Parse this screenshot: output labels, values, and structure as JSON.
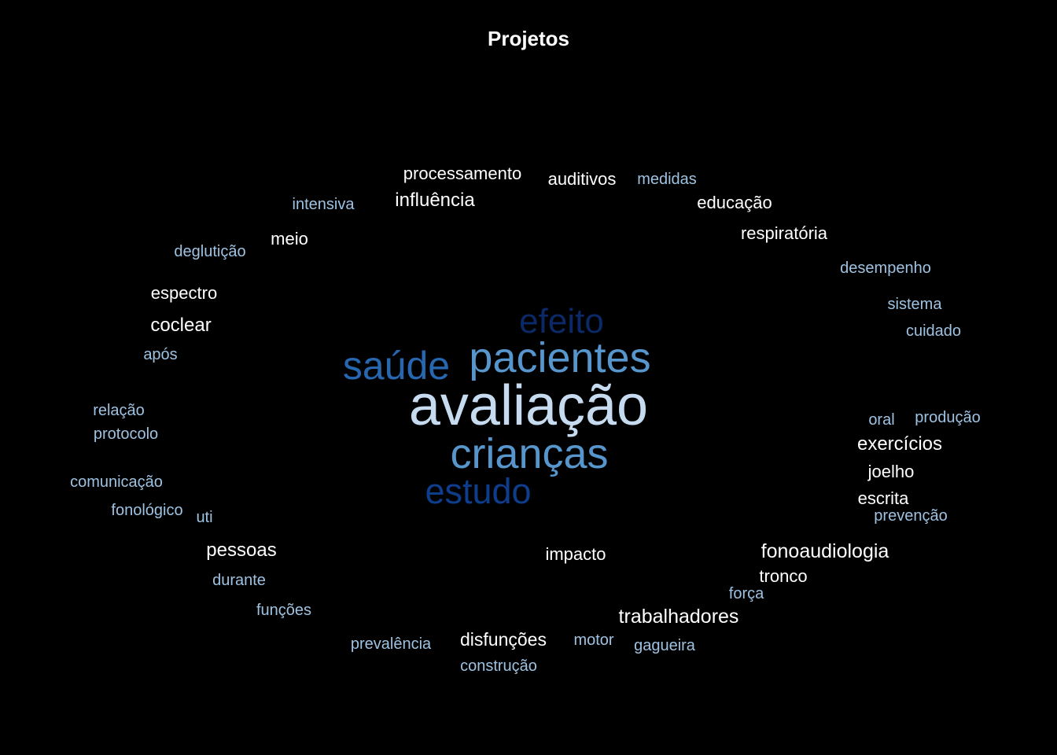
{
  "chart_data": {
    "type": "wordcloud",
    "title": "Projetos",
    "colors": {
      "background": "#000000",
      "title": "#ffffff",
      "white": "#ffffff",
      "light_blue": "#9ec2e2",
      "pale_blue": "#c6dbef",
      "mid_blue": "#5796cc",
      "blue": "#2767b0",
      "dark_blue": "#0e3d8c",
      "navy": "#0a2966"
    },
    "words": [
      {
        "text": "avaliação",
        "weight": 72,
        "color": "#c6dbef"
      },
      {
        "text": "pacientes",
        "weight": 54,
        "color": "#5796cc"
      },
      {
        "text": "crianças",
        "weight": 54,
        "color": "#5796cc"
      },
      {
        "text": "saúde",
        "weight": 50,
        "color": "#2767b0"
      },
      {
        "text": "estudo",
        "weight": 45,
        "color": "#0e3d8c"
      },
      {
        "text": "efeito",
        "weight": 44,
        "color": "#0a2966"
      },
      {
        "text": "fonoaudiologia",
        "weight": 25,
        "color": "#ffffff"
      },
      {
        "text": "trabalhadores",
        "weight": 25,
        "color": "#ffffff"
      },
      {
        "text": "exercícios",
        "weight": 24,
        "color": "#ffffff"
      },
      {
        "text": "pessoas",
        "weight": 24,
        "color": "#ffffff"
      },
      {
        "text": "coclear",
        "weight": 24,
        "color": "#ffffff"
      },
      {
        "text": "influência",
        "weight": 24,
        "color": "#ffffff"
      },
      {
        "text": "disfunções",
        "weight": 23,
        "color": "#ffffff"
      },
      {
        "text": "processamento",
        "weight": 22,
        "color": "#ffffff"
      },
      {
        "text": "auditivos",
        "weight": 22,
        "color": "#ffffff"
      },
      {
        "text": "educação",
        "weight": 22,
        "color": "#ffffff"
      },
      {
        "text": "respiratória",
        "weight": 22,
        "color": "#ffffff"
      },
      {
        "text": "espectro",
        "weight": 22,
        "color": "#ffffff"
      },
      {
        "text": "meio",
        "weight": 22,
        "color": "#ffffff"
      },
      {
        "text": "joelho",
        "weight": 22,
        "color": "#ffffff"
      },
      {
        "text": "escrita",
        "weight": 22,
        "color": "#ffffff"
      },
      {
        "text": "impacto",
        "weight": 22,
        "color": "#ffffff"
      },
      {
        "text": "tronco",
        "weight": 22,
        "color": "#ffffff"
      },
      {
        "text": "medidas",
        "weight": 20,
        "color": "#9ec2e2"
      },
      {
        "text": "intensiva",
        "weight": 20,
        "color": "#9ec2e2"
      },
      {
        "text": "deglutição",
        "weight": 20,
        "color": "#9ec2e2"
      },
      {
        "text": "desempenho",
        "weight": 20,
        "color": "#9ec2e2"
      },
      {
        "text": "sistema",
        "weight": 20,
        "color": "#9ec2e2"
      },
      {
        "text": "cuidado",
        "weight": 20,
        "color": "#9ec2e2"
      },
      {
        "text": "após",
        "weight": 20,
        "color": "#9ec2e2"
      },
      {
        "text": "relação",
        "weight": 20,
        "color": "#9ec2e2"
      },
      {
        "text": "protocolo",
        "weight": 20,
        "color": "#9ec2e2"
      },
      {
        "text": "oral",
        "weight": 20,
        "color": "#9ec2e2"
      },
      {
        "text": "produção",
        "weight": 20,
        "color": "#9ec2e2"
      },
      {
        "text": "comunicação",
        "weight": 20,
        "color": "#9ec2e2"
      },
      {
        "text": "fonológico",
        "weight": 20,
        "color": "#9ec2e2"
      },
      {
        "text": "uti",
        "weight": 20,
        "color": "#9ec2e2"
      },
      {
        "text": "prevenção",
        "weight": 20,
        "color": "#9ec2e2"
      },
      {
        "text": "durante",
        "weight": 20,
        "color": "#9ec2e2"
      },
      {
        "text": "força",
        "weight": 20,
        "color": "#9ec2e2"
      },
      {
        "text": "funções",
        "weight": 20,
        "color": "#9ec2e2"
      },
      {
        "text": "prevalência",
        "weight": 20,
        "color": "#9ec2e2"
      },
      {
        "text": "motor",
        "weight": 20,
        "color": "#9ec2e2"
      },
      {
        "text": "gagueira",
        "weight": 20,
        "color": "#9ec2e2"
      },
      {
        "text": "construção",
        "weight": 20,
        "color": "#9ec2e2"
      }
    ]
  }
}
